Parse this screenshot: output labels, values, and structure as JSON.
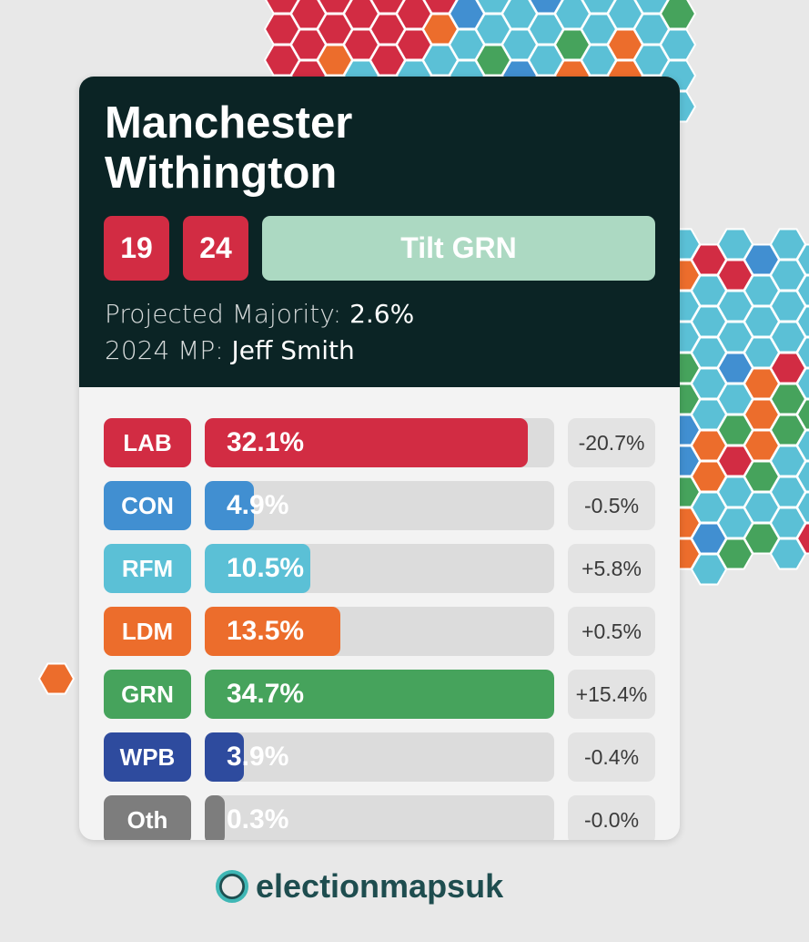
{
  "constituency": {
    "name_line1": "Manchester",
    "name_line2": "Withington"
  },
  "badges": {
    "year1": "19",
    "year2": "24",
    "rating": "Tilt GRN"
  },
  "majority": {
    "label": "Projected Majority:",
    "value": "2.6%"
  },
  "mp": {
    "label": "2024 MP:",
    "value": "Jeff Smith"
  },
  "parties": [
    {
      "code": "LAB",
      "share": 32.1,
      "share_label": "32.1%",
      "change": "-20.7%",
      "color": "#d22c43"
    },
    {
      "code": "CON",
      "share": 4.9,
      "share_label": "4.9%",
      "change": "-0.5%",
      "color": "#418fd1"
    },
    {
      "code": "RFM",
      "share": 10.5,
      "share_label": "10.5%",
      "change": "+5.8%",
      "color": "#5bc0d6"
    },
    {
      "code": "LDM",
      "share": 13.5,
      "share_label": "13.5%",
      "change": "+0.5%",
      "color": "#ec6d2c"
    },
    {
      "code": "GRN",
      "share": 34.7,
      "share_label": "34.7%",
      "change": "+15.4%",
      "color": "#46a35c"
    },
    {
      "code": "WPB",
      "share": 3.9,
      "share_label": "3.9%",
      "change": "-0.4%",
      "color": "#2e4b9e"
    },
    {
      "code": "Oth",
      "share": 0.3,
      "share_label": "0.3%",
      "change": "-0.0%",
      "color": "#7d7d7d"
    }
  ],
  "watermark": "electionmapsuk"
}
